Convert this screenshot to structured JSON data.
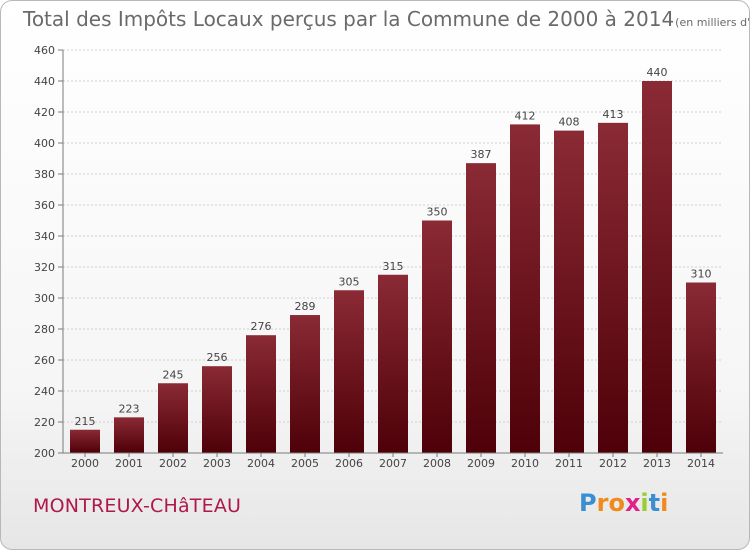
{
  "chart_data": {
    "type": "bar",
    "title": "Total des Impôts Locaux perçus par la Commune de 2000 à 2014",
    "unit": "(en milliers d'€)",
    "categories": [
      "2000",
      "2001",
      "2002",
      "2003",
      "2004",
      "2005",
      "2006",
      "2007",
      "2008",
      "2009",
      "2010",
      "2011",
      "2012",
      "2013",
      "2014"
    ],
    "values": [
      215,
      223,
      245,
      256,
      276,
      289,
      305,
      315,
      350,
      387,
      412,
      408,
      413,
      440,
      310
    ],
    "ylim": [
      200,
      460
    ],
    "yticks": [
      200,
      220,
      240,
      260,
      280,
      300,
      320,
      340,
      360,
      380,
      400,
      420,
      440,
      460
    ],
    "xlabel": "",
    "ylabel": "",
    "grid": true,
    "bar_color": "#7a1e28"
  },
  "commune": "MONTREUX-CHâTEAU",
  "logo": {
    "letters": [
      "P",
      "r",
      "o",
      "x",
      "i",
      "t",
      "i"
    ],
    "colors": [
      "#3b8fd0",
      "#f08a1c",
      "#f08a1c",
      "#e0218a",
      "#9acd32",
      "#3b8fd0",
      "#f08a1c"
    ]
  }
}
